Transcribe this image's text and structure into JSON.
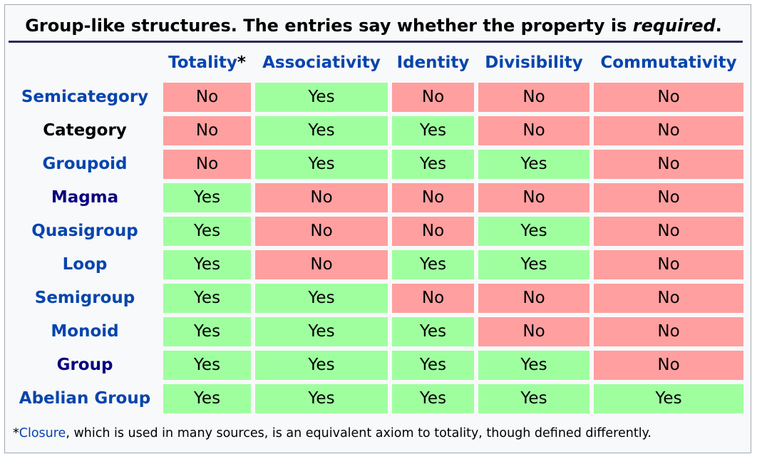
{
  "caption": {
    "before": "Group-like structures. The entries say whether the property is ",
    "em": "required",
    "after": "."
  },
  "columns": [
    {
      "label": "Totality",
      "suffix": "*",
      "style": "link"
    },
    {
      "label": "Associativity",
      "suffix": "",
      "style": "link"
    },
    {
      "label": "Identity",
      "suffix": "",
      "style": "link"
    },
    {
      "label": "Divisibility",
      "suffix": "",
      "style": "link"
    },
    {
      "label": "Commutativity",
      "suffix": "",
      "style": "link"
    }
  ],
  "rows": [
    {
      "name": "Semicategory",
      "style": "link",
      "cells": [
        "No",
        "Yes",
        "No",
        "No",
        "No"
      ]
    },
    {
      "name": "Category",
      "style": "black",
      "cells": [
        "No",
        "Yes",
        "Yes",
        "No",
        "No"
      ]
    },
    {
      "name": "Groupoid",
      "style": "link",
      "cells": [
        "No",
        "Yes",
        "Yes",
        "Yes",
        "No"
      ]
    },
    {
      "name": "Magma",
      "style": "visited",
      "cells": [
        "Yes",
        "No",
        "No",
        "No",
        "No"
      ]
    },
    {
      "name": "Quasigroup",
      "style": "link",
      "cells": [
        "Yes",
        "No",
        "No",
        "Yes",
        "No"
      ]
    },
    {
      "name": "Loop",
      "style": "link",
      "cells": [
        "Yes",
        "No",
        "Yes",
        "Yes",
        "No"
      ]
    },
    {
      "name": "Semigroup",
      "style": "link",
      "cells": [
        "Yes",
        "Yes",
        "No",
        "No",
        "No"
      ]
    },
    {
      "name": "Monoid",
      "style": "link",
      "cells": [
        "Yes",
        "Yes",
        "Yes",
        "No",
        "No"
      ]
    },
    {
      "name": "Group",
      "style": "visited",
      "cells": [
        "Yes",
        "Yes",
        "Yes",
        "Yes",
        "No"
      ]
    },
    {
      "name": "Abelian Group",
      "style": "link",
      "cells": [
        "Yes",
        "Yes",
        "Yes",
        "Yes",
        "Yes"
      ]
    }
  ],
  "footnote": {
    "star": "*",
    "link": "Closure",
    "text": ", which is used in many sources, is an equivalent axiom to totality, though defined differently."
  },
  "colors": {
    "yes": "#9fff9f",
    "no": "#ff9f9f",
    "link": "#0645ad",
    "visited_link": "#0b0080"
  }
}
